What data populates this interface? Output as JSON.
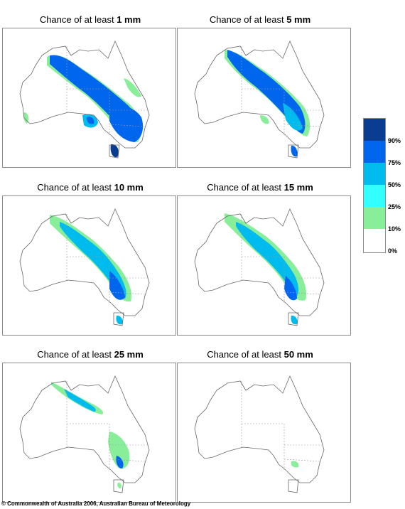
{
  "panels": [
    {
      "prefix": "Chance of at least ",
      "amount": "1 mm"
    },
    {
      "prefix": "Chance of at least ",
      "amount": "5 mm"
    },
    {
      "prefix": "Chance of at least ",
      "amount": "10 mm"
    },
    {
      "prefix": "Chance of at least ",
      "amount": "15 mm"
    },
    {
      "prefix": "Chance of at least ",
      "amount": "25 mm"
    },
    {
      "prefix": "Chance of at least ",
      "amount": "50 mm"
    }
  ],
  "legend": {
    "labels": [
      "90%",
      "75%",
      "50%",
      "25%",
      "10%",
      "0%"
    ],
    "colors": [
      "#0a3d91",
      "#0066ee",
      "#00bbee",
      "#33ffff",
      "#88ee99",
      "#ffffff"
    ]
  },
  "copyright": "© Commonwealth of Australia 2006, Australian Bureau of Meteorology"
}
